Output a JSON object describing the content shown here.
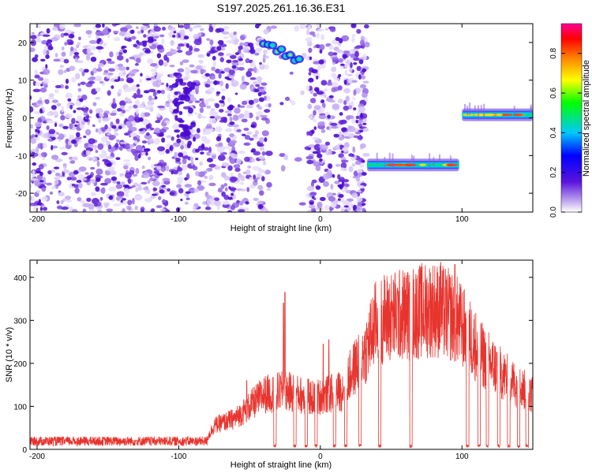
{
  "title": "S197.2025.261.16.36.E31",
  "chart_data": [
    {
      "type": "heatmap",
      "title": "S197.2025.261.16.36.E31",
      "xlabel": "Height of straight line (km)",
      "ylabel": "Frequency (Hz)",
      "xlim": [
        -205,
        150
      ],
      "ylim": [
        -25,
        25
      ],
      "xticks": [
        -200,
        -100,
        0,
        100
      ],
      "yticks": [
        -20,
        -10,
        0,
        10,
        20
      ],
      "noise_region_x": [
        -205,
        33
      ],
      "gap_region_x": [
        -40,
        -5
      ],
      "features": [
        {
          "name": "upper tone",
          "x": [
            -40,
            -15
          ],
          "freq": [
            15,
            20
          ]
        },
        {
          "name": "lower tone",
          "x": [
            33,
            98
          ],
          "freq": -12.5
        },
        {
          "name": "zero tone",
          "x": [
            100,
            150
          ],
          "freq": 0.8
        }
      ],
      "colorbar": {
        "label": "Normalized spectral amplitude",
        "range": [
          0.0,
          0.95
        ],
        "ticks": [
          0.0,
          0.2,
          0.4,
          0.6,
          0.8
        ]
      }
    },
    {
      "type": "line",
      "xlabel": "Height of straight line (km)",
      "ylabel": "SNR (10 * v/v)",
      "xlim": [
        -205,
        150
      ],
      "ylim": [
        0,
        440
      ],
      "xticks": [
        -200,
        -100,
        0,
        100
      ],
      "yticks": [
        0,
        100,
        200,
        300,
        400
      ],
      "color": "#e8342e",
      "envelope": [
        {
          "x": -205,
          "y": 25
        },
        {
          "x": -120,
          "y": 25
        },
        {
          "x": -80,
          "y": 30
        },
        {
          "x": -75,
          "y": 65
        },
        {
          "x": -60,
          "y": 85
        },
        {
          "x": -40,
          "y": 150
        },
        {
          "x": -25,
          "y": 160
        },
        {
          "x": -5,
          "y": 140
        },
        {
          "x": 15,
          "y": 160
        },
        {
          "x": 25,
          "y": 230
        },
        {
          "x": 32,
          "y": 270
        },
        {
          "x": 40,
          "y": 355
        },
        {
          "x": 60,
          "y": 370
        },
        {
          "x": 80,
          "y": 385
        },
        {
          "x": 95,
          "y": 360
        },
        {
          "x": 105,
          "y": 310
        },
        {
          "x": 115,
          "y": 255
        },
        {
          "x": 130,
          "y": 200
        },
        {
          "x": 145,
          "y": 160
        },
        {
          "x": 150,
          "y": 150
        }
      ],
      "spikes": [
        {
          "x": -170,
          "y": 50
        },
        {
          "x": -52,
          "y": 160
        },
        {
          "x": -26,
          "y": 340
        },
        {
          "x": -25,
          "y": 365
        },
        {
          "x": 2,
          "y": 245
        },
        {
          "x": 6,
          "y": 255
        },
        {
          "x": 85,
          "y": 435
        },
        {
          "x": 95,
          "y": 430
        }
      ],
      "dropouts": [
        -32,
        -18,
        -10,
        -3,
        10,
        18,
        28,
        42,
        64,
        104,
        112,
        118,
        126,
        133,
        140,
        146
      ]
    }
  ]
}
